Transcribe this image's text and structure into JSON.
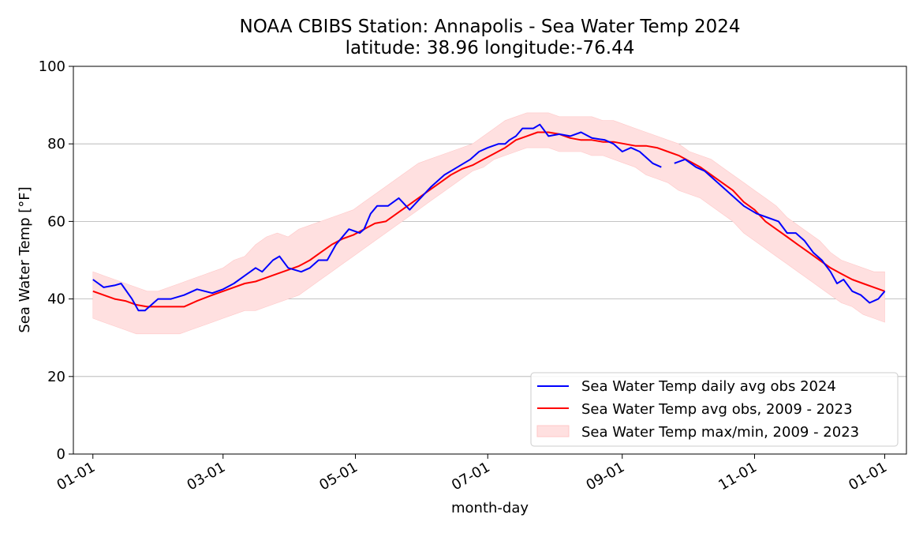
{
  "chart_data": {
    "type": "line",
    "title": "NOAA CBIBS Station: Annapolis - Sea Water Temp 2024",
    "subtitle": "latitude: 38.96 longitude:-76.44",
    "xlabel": "month-day",
    "ylabel": "Sea Water Temp [°F]",
    "ylim": [
      0,
      100
    ],
    "yticks": [
      0,
      20,
      40,
      60,
      80,
      100
    ],
    "xlim_day": [
      -9,
      375
    ],
    "xticks": [
      {
        "day": 0,
        "label": "01-01"
      },
      {
        "day": 60,
        "label": "03-01"
      },
      {
        "day": 121,
        "label": "05-01"
      },
      {
        "day": 182,
        "label": "07-01"
      },
      {
        "day": 244,
        "label": "09-01"
      },
      {
        "day": 305,
        "label": "11-01"
      },
      {
        "day": 365,
        "label": "01-01"
      }
    ],
    "grid": "horizontal",
    "legend_position": "lower-right",
    "series": [
      {
        "name": "Sea Water Temp daily avg obs 2024",
        "kind": "line",
        "color": "#0000ff",
        "gaps_after_day": [
          262
        ],
        "points": [
          [
            0,
            45
          ],
          [
            5,
            43
          ],
          [
            10,
            43.5
          ],
          [
            13,
            44
          ],
          [
            18,
            40
          ],
          [
            21,
            37
          ],
          [
            24,
            37
          ],
          [
            30,
            40
          ],
          [
            36,
            40
          ],
          [
            42,
            41
          ],
          [
            48,
            42.5
          ],
          [
            55,
            41.5
          ],
          [
            60,
            42.5
          ],
          [
            65,
            44
          ],
          [
            70,
            46
          ],
          [
            75,
            48
          ],
          [
            78,
            47
          ],
          [
            83,
            50
          ],
          [
            86,
            51
          ],
          [
            90,
            48
          ],
          [
            96,
            47
          ],
          [
            100,
            48
          ],
          [
            104,
            50
          ],
          [
            108,
            50
          ],
          [
            112,
            54
          ],
          [
            118,
            58
          ],
          [
            123,
            57
          ],
          [
            125,
            58
          ],
          [
            128,
            62
          ],
          [
            131,
            64
          ],
          [
            136,
            64
          ],
          [
            141,
            66
          ],
          [
            146,
            63
          ],
          [
            151,
            66
          ],
          [
            156,
            69
          ],
          [
            162,
            72
          ],
          [
            168,
            74
          ],
          [
            174,
            76
          ],
          [
            178,
            78
          ],
          [
            182,
            79
          ],
          [
            187,
            80
          ],
          [
            190,
            80
          ],
          [
            192,
            81
          ],
          [
            195,
            82
          ],
          [
            198,
            84
          ],
          [
            203,
            84
          ],
          [
            206,
            85
          ],
          [
            210,
            82
          ],
          [
            215,
            82.5
          ],
          [
            220,
            82
          ],
          [
            225,
            83
          ],
          [
            230,
            81.5
          ],
          [
            236,
            81
          ],
          [
            240,
            80
          ],
          [
            244,
            78
          ],
          [
            248,
            79
          ],
          [
            252,
            78
          ],
          [
            258,
            75
          ],
          [
            262,
            74
          ],
          [
            268,
            75
          ],
          [
            273,
            76
          ],
          [
            278,
            74
          ],
          [
            282,
            73
          ],
          [
            300,
            64
          ],
          [
            303,
            63
          ],
          [
            306,
            62
          ],
          [
            311,
            61
          ],
          [
            316,
            60
          ],
          [
            320,
            57
          ],
          [
            324,
            57
          ],
          [
            328,
            55
          ],
          [
            332,
            52
          ],
          [
            336,
            50
          ],
          [
            340,
            47
          ],
          [
            343,
            44
          ],
          [
            346,
            45
          ],
          [
            350,
            42
          ],
          [
            354,
            41
          ],
          [
            358,
            39
          ],
          [
            362,
            40
          ],
          [
            365,
            42
          ]
        ]
      },
      {
        "name": "Sea Water Temp avg obs, 2009 - 2023",
        "kind": "line",
        "color": "#ff0000",
        "points": [
          [
            0,
            42
          ],
          [
            5,
            41
          ],
          [
            10,
            40
          ],
          [
            15,
            39.5
          ],
          [
            20,
            38.5
          ],
          [
            25,
            38
          ],
          [
            30,
            38
          ],
          [
            36,
            38
          ],
          [
            42,
            38
          ],
          [
            48,
            39.5
          ],
          [
            55,
            41
          ],
          [
            60,
            42
          ],
          [
            65,
            43
          ],
          [
            70,
            44
          ],
          [
            75,
            44.5
          ],
          [
            80,
            45.5
          ],
          [
            85,
            46.5
          ],
          [
            90,
            47.5
          ],
          [
            95,
            48.5
          ],
          [
            100,
            50
          ],
          [
            105,
            52
          ],
          [
            110,
            54
          ],
          [
            115,
            55.5
          ],
          [
            120,
            56.5
          ],
          [
            125,
            58
          ],
          [
            130,
            59.5
          ],
          [
            135,
            60
          ],
          [
            140,
            62
          ],
          [
            145,
            64
          ],
          [
            150,
            66
          ],
          [
            155,
            68
          ],
          [
            160,
            70
          ],
          [
            165,
            72
          ],
          [
            170,
            73.5
          ],
          [
            175,
            74.5
          ],
          [
            180,
            76
          ],
          [
            185,
            77.5
          ],
          [
            190,
            79
          ],
          [
            195,
            81
          ],
          [
            200,
            82
          ],
          [
            205,
            83
          ],
          [
            210,
            83
          ],
          [
            215,
            82.5
          ],
          [
            220,
            81.5
          ],
          [
            225,
            81
          ],
          [
            230,
            81
          ],
          [
            235,
            80.5
          ],
          [
            240,
            80.5
          ],
          [
            245,
            80
          ],
          [
            250,
            79.5
          ],
          [
            255,
            79.5
          ],
          [
            260,
            79
          ],
          [
            265,
            78
          ],
          [
            270,
            77
          ],
          [
            275,
            75.5
          ],
          [
            280,
            74
          ],
          [
            285,
            72
          ],
          [
            290,
            70
          ],
          [
            295,
            68
          ],
          [
            300,
            65
          ],
          [
            305,
            63
          ],
          [
            310,
            60
          ],
          [
            315,
            58
          ],
          [
            320,
            56
          ],
          [
            325,
            54
          ],
          [
            330,
            52
          ],
          [
            335,
            50
          ],
          [
            340,
            48
          ],
          [
            345,
            46.5
          ],
          [
            350,
            45
          ],
          [
            355,
            44
          ],
          [
            360,
            43
          ],
          [
            365,
            42
          ]
        ]
      },
      {
        "name": "Sea Water Temp max/min, 2009 - 2023",
        "kind": "band",
        "color": "#ffe0e0",
        "points": [
          [
            0,
            35,
            47
          ],
          [
            5,
            34,
            46
          ],
          [
            10,
            33,
            45
          ],
          [
            15,
            32,
            44
          ],
          [
            20,
            31,
            43
          ],
          [
            25,
            31,
            42
          ],
          [
            30,
            31,
            42
          ],
          [
            35,
            31,
            43
          ],
          [
            40,
            31,
            44
          ],
          [
            45,
            32,
            45
          ],
          [
            50,
            33,
            46
          ],
          [
            55,
            34,
            47
          ],
          [
            60,
            35,
            48
          ],
          [
            65,
            36,
            50
          ],
          [
            70,
            37,
            51
          ],
          [
            75,
            37,
            54
          ],
          [
            80,
            38,
            56
          ],
          [
            85,
            39,
            57
          ],
          [
            90,
            40,
            56
          ],
          [
            95,
            41,
            58
          ],
          [
            100,
            43,
            59
          ],
          [
            105,
            45,
            60
          ],
          [
            110,
            47,
            61
          ],
          [
            115,
            49,
            62
          ],
          [
            120,
            51,
            63
          ],
          [
            125,
            53,
            65
          ],
          [
            130,
            55,
            67
          ],
          [
            135,
            57,
            69
          ],
          [
            140,
            59,
            71
          ],
          [
            145,
            61,
            73
          ],
          [
            150,
            63,
            75
          ],
          [
            155,
            65,
            76
          ],
          [
            160,
            67,
            77
          ],
          [
            165,
            69,
            78
          ],
          [
            170,
            71,
            79
          ],
          [
            175,
            73,
            80
          ],
          [
            180,
            74,
            82
          ],
          [
            185,
            76,
            84
          ],
          [
            190,
            77,
            86
          ],
          [
            195,
            78,
            87
          ],
          [
            200,
            79,
            88
          ],
          [
            205,
            79,
            88
          ],
          [
            210,
            79,
            88
          ],
          [
            215,
            78,
            87
          ],
          [
            220,
            78,
            87
          ],
          [
            225,
            78,
            87
          ],
          [
            230,
            77,
            87
          ],
          [
            235,
            77,
            86
          ],
          [
            240,
            76,
            86
          ],
          [
            245,
            75,
            85
          ],
          [
            250,
            74,
            84
          ],
          [
            255,
            72,
            83
          ],
          [
            260,
            71,
            82
          ],
          [
            265,
            70,
            81
          ],
          [
            270,
            68,
            80
          ],
          [
            275,
            67,
            78
          ],
          [
            280,
            66,
            77
          ],
          [
            285,
            64,
            76
          ],
          [
            290,
            62,
            74
          ],
          [
            295,
            60,
            72
          ],
          [
            300,
            57,
            70
          ],
          [
            305,
            55,
            68
          ],
          [
            310,
            53,
            66
          ],
          [
            315,
            51,
            64
          ],
          [
            320,
            49,
            61
          ],
          [
            325,
            47,
            59
          ],
          [
            330,
            45,
            57
          ],
          [
            335,
            43,
            55
          ],
          [
            340,
            41,
            52
          ],
          [
            345,
            39,
            50
          ],
          [
            350,
            38,
            49
          ],
          [
            355,
            36,
            48
          ],
          [
            360,
            35,
            47
          ],
          [
            365,
            34,
            47
          ]
        ]
      }
    ]
  }
}
